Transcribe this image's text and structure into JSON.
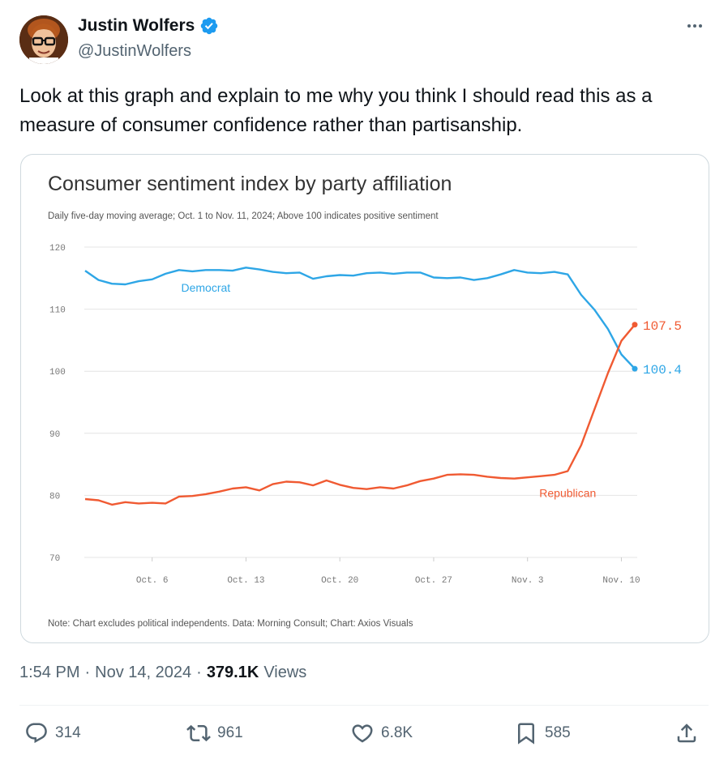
{
  "author": {
    "display_name": "Justin Wolfers",
    "handle": "@JustinWolfers",
    "verified": true
  },
  "tweet": {
    "text_line1": "Look at this graph and explain to me why you think I should read this as a",
    "text_line2": "measure of consumer confidence rather than partisanship.",
    "time": "1:54 PM",
    "date": "Nov 14, 2024",
    "views_count": "379.1K",
    "views_label": "Views"
  },
  "actions": {
    "replies": "314",
    "reposts": "961",
    "likes": "6.8K",
    "bookmarks": "585"
  },
  "icons": [
    "more-icon",
    "verified-badge-icon",
    "reply-icon",
    "repost-icon",
    "like-icon",
    "bookmark-icon",
    "share-icon"
  ],
  "colors": {
    "democrat": "#2ea6e6",
    "republican": "#f05a32",
    "verified": "#1d9bf0"
  },
  "chart_data": {
    "type": "line",
    "title": "Consumer sentiment index by party affiliation",
    "subtitle": "Daily five-day moving average; Oct. 1 to Nov. 11, 2024; Above 100 indicates positive sentiment",
    "note": "Note: Chart excludes political independents. Data: Morning Consult; Chart: Axios Visuals",
    "ylim": [
      70,
      120
    ],
    "yticks": [
      120,
      110,
      100,
      90,
      80,
      70
    ],
    "xlim": [
      1,
      42
    ],
    "xticks": [
      {
        "x": 6,
        "label": "Oct. 6"
      },
      {
        "x": 13,
        "label": "Oct. 13"
      },
      {
        "x": 20,
        "label": "Oct. 20"
      },
      {
        "x": 27,
        "label": "Oct. 27"
      },
      {
        "x": 34,
        "label": "Nov. 3"
      },
      {
        "x": 41,
        "label": "Nov. 10"
      }
    ],
    "grid": true,
    "series": [
      {
        "name": "Democrat",
        "end_label": "100.4",
        "x": [
          1,
          2,
          3,
          4,
          5,
          6,
          7,
          8,
          9,
          10,
          11,
          12,
          13,
          14,
          15,
          16,
          17,
          18,
          19,
          20,
          21,
          22,
          23,
          24,
          25,
          26,
          27,
          28,
          29,
          30,
          31,
          32,
          33,
          34,
          35,
          36,
          37,
          38,
          39,
          40,
          41,
          42
        ],
        "values": [
          116.2,
          114.7,
          114.1,
          114.0,
          114.5,
          114.8,
          115.7,
          116.3,
          116.1,
          116.3,
          116.3,
          116.2,
          116.7,
          116.4,
          116.0,
          115.8,
          115.9,
          114.9,
          115.3,
          115.5,
          115.4,
          115.8,
          115.9,
          115.7,
          115.9,
          115.9,
          115.1,
          115.0,
          115.1,
          114.7,
          115.0,
          115.6,
          116.3,
          115.9,
          115.8,
          116.0,
          115.6,
          112.3,
          109.9,
          106.8,
          102.7,
          100.4
        ]
      },
      {
        "name": "Republican",
        "end_label": "107.5",
        "x": [
          1,
          2,
          3,
          4,
          5,
          6,
          7,
          8,
          9,
          10,
          11,
          12,
          13,
          14,
          15,
          16,
          17,
          18,
          19,
          20,
          21,
          22,
          23,
          24,
          25,
          26,
          27,
          28,
          29,
          30,
          31,
          32,
          33,
          34,
          35,
          36,
          37,
          38,
          39,
          40,
          41,
          42
        ],
        "values": [
          79.4,
          79.2,
          78.5,
          78.9,
          78.7,
          78.8,
          78.7,
          79.8,
          79.9,
          80.2,
          80.6,
          81.1,
          81.3,
          80.8,
          81.8,
          82.2,
          82.1,
          81.6,
          82.4,
          81.7,
          81.2,
          81.0,
          81.3,
          81.1,
          81.6,
          82.3,
          82.7,
          83.3,
          83.4,
          83.3,
          83.0,
          82.8,
          82.7,
          82.9,
          83.1,
          83.3,
          83.9,
          88.1,
          93.9,
          99.7,
          104.9,
          107.5
        ]
      }
    ]
  }
}
